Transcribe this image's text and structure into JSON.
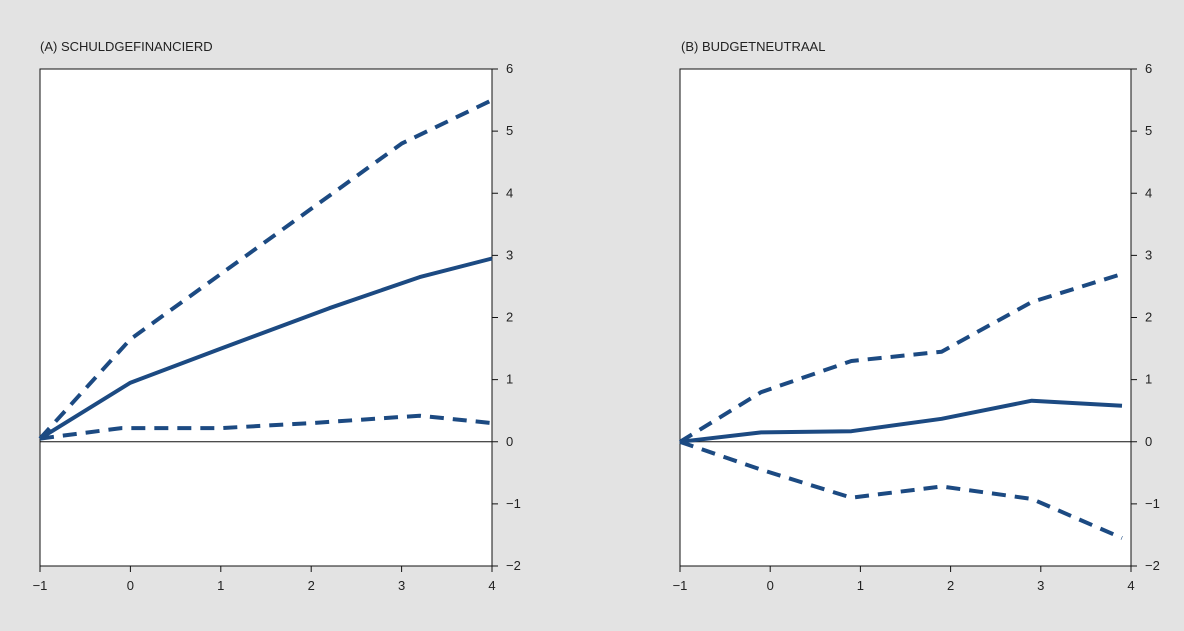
{
  "colors": {
    "background": "#e3e3e3",
    "plot_area": "#ffffff",
    "axis": "#111111",
    "series": "#1c4a82"
  },
  "chart_data": [
    {
      "type": "line",
      "title": "(A) SCHULDGEFINANCIERD",
      "xlabel": "",
      "ylabel": "",
      "xlim": [
        -1,
        4
      ],
      "ylim": [
        -2,
        6
      ],
      "x_ticks": [
        -1,
        0,
        1,
        2,
        3,
        4
      ],
      "y_ticks": [
        -2,
        -1,
        0,
        1,
        2,
        3,
        4,
        5,
        6
      ],
      "y_axis_side": "right",
      "zero_line": true,
      "grid": false,
      "legend": "none",
      "series": [
        {
          "style": "solid",
          "x": [
            -1,
            0,
            1,
            2.2,
            3.2,
            4
          ],
          "y": [
            0.05,
            0.95,
            1.5,
            2.15,
            2.65,
            2.95
          ]
        },
        {
          "style": "dashed",
          "x": [
            -1,
            0,
            1,
            2,
            3,
            4
          ],
          "y": [
            0.05,
            1.65,
            2.7,
            3.75,
            4.8,
            5.5
          ]
        },
        {
          "style": "dashed",
          "x": [
            -1,
            -0.1,
            1,
            2,
            3.2,
            4
          ],
          "y": [
            0.05,
            0.22,
            0.22,
            0.3,
            0.42,
            0.3
          ]
        }
      ]
    },
    {
      "type": "line",
      "title": "(B) BUDGETNEUTRAAL",
      "xlabel": "",
      "ylabel": "",
      "xlim": [
        -1,
        4
      ],
      "ylim": [
        -2,
        6
      ],
      "x_ticks": [
        -1,
        0,
        1,
        2,
        3,
        4
      ],
      "y_ticks": [
        -2,
        -1,
        0,
        1,
        2,
        3,
        4,
        5,
        6
      ],
      "y_axis_side": "right",
      "zero_line": true,
      "grid": false,
      "legend": "none",
      "series": [
        {
          "style": "solid",
          "x": [
            -1,
            -0.1,
            0.9,
            1.9,
            2.9,
            3.9
          ],
          "y": [
            0,
            0.15,
            0.17,
            0.37,
            0.66,
            0.58
          ]
        },
        {
          "style": "dashed",
          "x": [
            -1,
            -0.1,
            0.9,
            1.9,
            2.9,
            3.9
          ],
          "y": [
            0,
            0.8,
            1.3,
            1.45,
            2.25,
            2.7
          ]
        },
        {
          "style": "dashed",
          "x": [
            -1,
            -0.1,
            0.9,
            1.9,
            2.9,
            3.9
          ],
          "y": [
            0,
            -0.45,
            -0.9,
            -0.72,
            -0.92,
            -1.55
          ]
        }
      ]
    }
  ]
}
